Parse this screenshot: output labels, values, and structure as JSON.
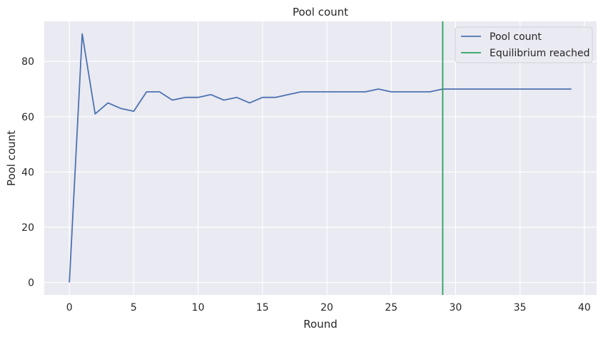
{
  "chart_data": {
    "type": "line",
    "title": "Pool count",
    "xlabel": "Round",
    "ylabel": "Pool count",
    "xlim": [
      -1.95,
      40.95
    ],
    "ylim": [
      -4.5,
      94.5
    ],
    "xticks": [
      0,
      5,
      10,
      15,
      20,
      25,
      30,
      35,
      40
    ],
    "yticks": [
      0,
      20,
      40,
      60,
      80
    ],
    "grid": true,
    "legend_position": "top-right",
    "background": "#eaeaf2",
    "series": [
      {
        "name": "Pool count",
        "color": "#4c72b0",
        "x": [
          0,
          1,
          2,
          3,
          4,
          5,
          6,
          7,
          8,
          9,
          10,
          11,
          12,
          13,
          14,
          15,
          16,
          17,
          18,
          19,
          20,
          21,
          22,
          23,
          24,
          25,
          26,
          27,
          28,
          29,
          30,
          31,
          32,
          33,
          34,
          35,
          36,
          37,
          38,
          39
        ],
        "values": [
          0,
          90,
          61,
          65,
          63,
          62,
          69,
          69,
          66,
          67,
          67,
          68,
          66,
          67,
          65,
          67,
          67,
          68,
          69,
          69,
          69,
          69,
          69,
          69,
          70,
          69,
          69,
          69,
          69,
          70,
          70,
          70,
          70,
          70,
          70,
          70,
          70,
          70,
          70,
          70
        ]
      }
    ],
    "vlines": [
      {
        "name": "Equilibrium reached",
        "x": 29,
        "color": "#2ca25f"
      }
    ]
  }
}
